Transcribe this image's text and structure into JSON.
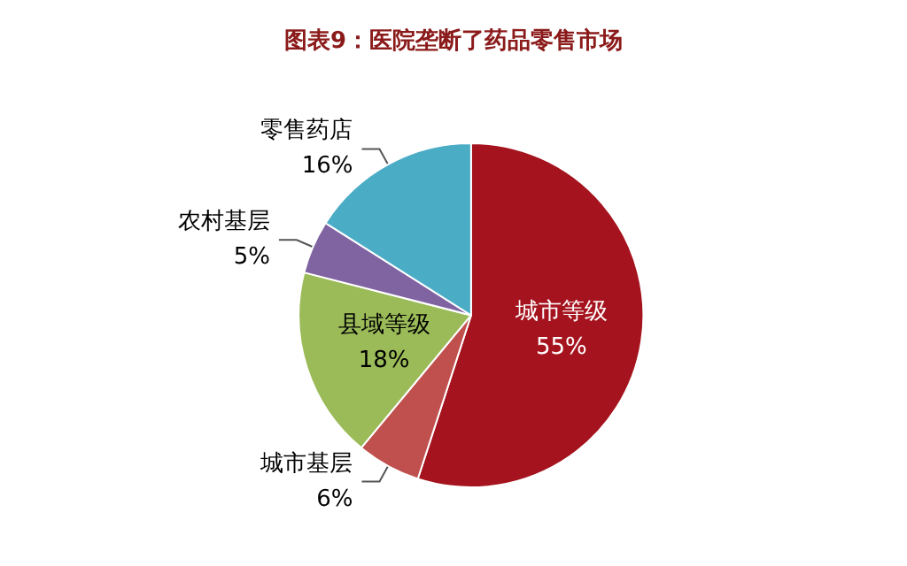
{
  "chart_data": {
    "type": "pie",
    "title": "图表9：医院垄断了药品零售市场",
    "categories": [
      "城市等级",
      "城市基层",
      "县域等级",
      "农村基层",
      "零售药店"
    ],
    "values": [
      55,
      6,
      18,
      5,
      16
    ],
    "value_labels": [
      "55%",
      "6%",
      "18%",
      "5%",
      "16%"
    ],
    "colors": [
      "#a5141e",
      "#c0504d",
      "#9bbb59",
      "#8064a2",
      "#4bacc6"
    ],
    "legend": false
  }
}
